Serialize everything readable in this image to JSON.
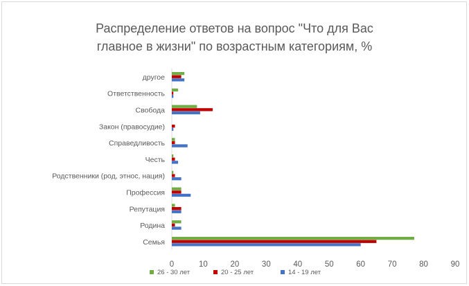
{
  "chart_data": {
    "type": "bar",
    "orientation": "horizontal",
    "title_lines": [
      "Распределение ответов на вопрос \"Что для Вас",
      "главное в жизни\" по возрастным категориям, %"
    ],
    "categories": [
      "другое",
      "Ответственность",
      "Свобода",
      "Закон (правосудие)",
      "Справедливость",
      "Честь",
      "Родственники (род, этнос, нация)",
      "Профессия",
      "Репутация",
      "Родина",
      "Семья"
    ],
    "series": [
      {
        "name": "26 - 30 лет",
        "color": "#70ad47",
        "values": [
          4,
          2,
          8,
          0,
          1,
          0.5,
          0.5,
          3,
          1,
          3,
          77
        ]
      },
      {
        "name": "20 - 25 лет",
        "color": "#c00000",
        "values": [
          3,
          0.5,
          13,
          1,
          1,
          1,
          1,
          3,
          3,
          1,
          65
        ]
      },
      {
        "name": "14 - 19 лет",
        "color": "#4472c4",
        "values": [
          4,
          0.5,
          9,
          0.5,
          5,
          2,
          3,
          6,
          3,
          3,
          60
        ]
      }
    ],
    "xlim": [
      0,
      90
    ],
    "xticks": [
      "0",
      "10",
      "20",
      "30",
      "40",
      "50",
      "60",
      "70",
      "80",
      "90"
    ],
    "grid": false,
    "legend_position": "bottom"
  }
}
